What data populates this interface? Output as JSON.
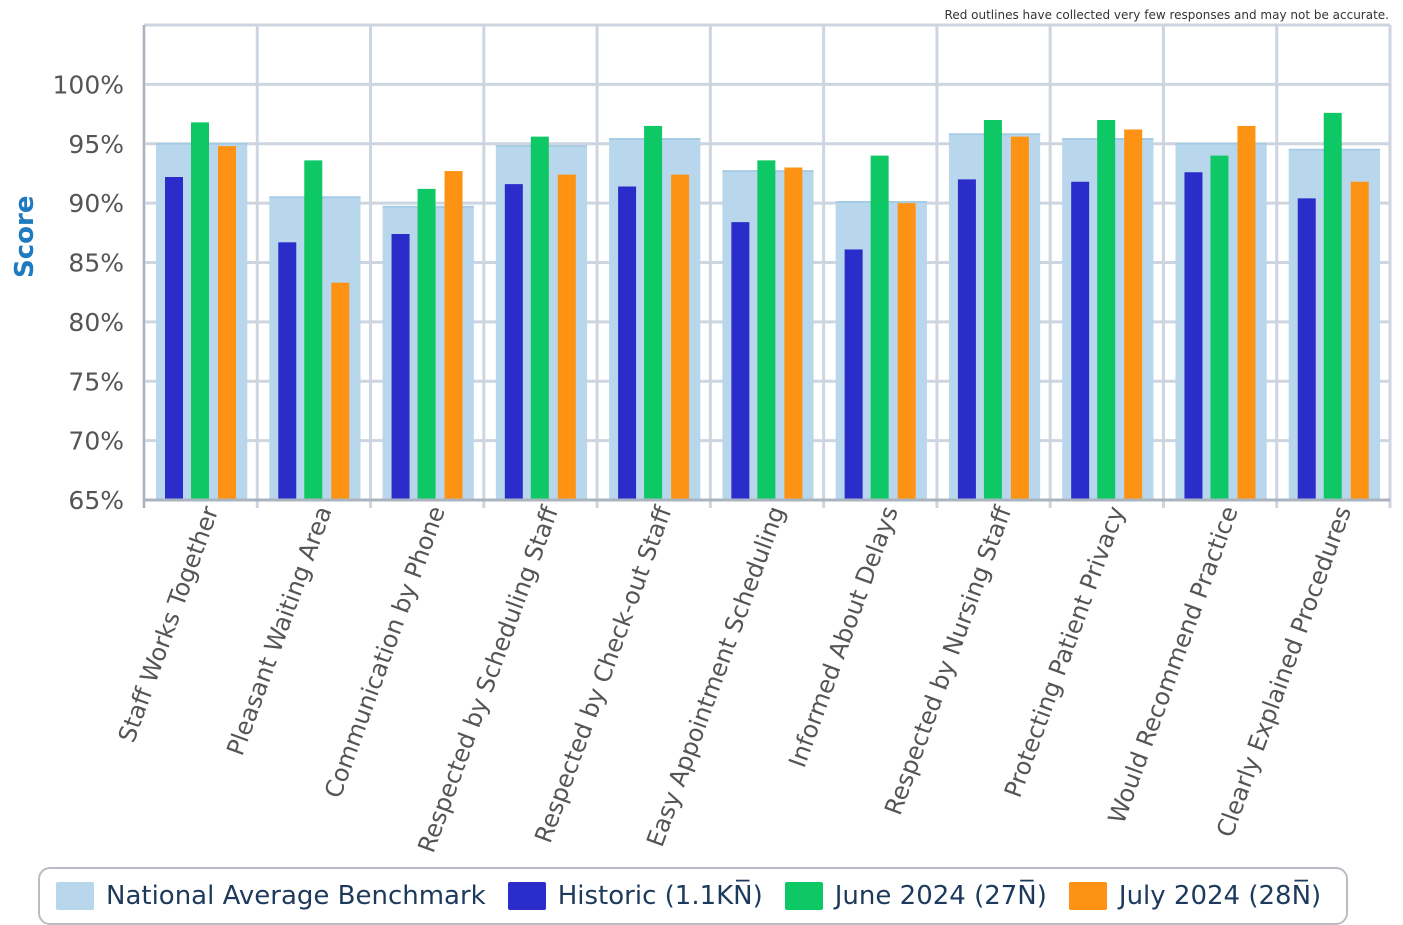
{
  "note": "Red outlines have collected very few responses and may not be accurate.",
  "colors": {
    "benchmark": "#b9d7ec",
    "historic": "#2a2dc9",
    "june": "#0dc864",
    "july": "#fe9212",
    "grid": "#cdd6e0",
    "axis_text": "#555555",
    "ylabel": "#1f7bc1"
  },
  "chart_data": {
    "type": "bar",
    "ylabel": "Score",
    "xlabel": "",
    "ylim": [
      65,
      105
    ],
    "yticks": [
      "65%",
      "70%",
      "75%",
      "80%",
      "85%",
      "90%",
      "95%",
      "100%"
    ],
    "grid": true,
    "legend_placement": "bottom",
    "categories": [
      "Staff Works Together",
      "Pleasant Waiting Area",
      "Communication by Phone",
      "Respected by Scheduling Staff",
      "Respected by Check-out Staff",
      "Easy Appointment Scheduling",
      "Informed About Delays",
      "Respected by Nursing Staff",
      "Protecting Patient Privacy",
      "Would Recommend Practice",
      "Clearly Explained Procedures"
    ],
    "series": [
      {
        "name": "National Average Benchmark",
        "values": [
          95.0,
          90.5,
          89.7,
          94.8,
          95.4,
          92.7,
          90.1,
          95.8,
          95.4,
          95.0,
          94.5
        ]
      },
      {
        "name": "Historic (1.1KN̅)",
        "values": [
          92.2,
          86.7,
          87.4,
          91.6,
          91.4,
          88.4,
          86.1,
          92.0,
          91.8,
          92.6,
          90.4
        ]
      },
      {
        "name": "June 2024 (27N̅)",
        "values": [
          96.8,
          93.6,
          91.2,
          95.6,
          96.5,
          93.6,
          94.0,
          97.0,
          97.0,
          94.0,
          97.6
        ]
      },
      {
        "name": "July 2024 (28N̅)",
        "values": [
          94.8,
          83.3,
          92.7,
          92.4,
          92.4,
          93.0,
          90.0,
          95.6,
          96.2,
          96.5,
          91.8
        ]
      }
    ]
  }
}
